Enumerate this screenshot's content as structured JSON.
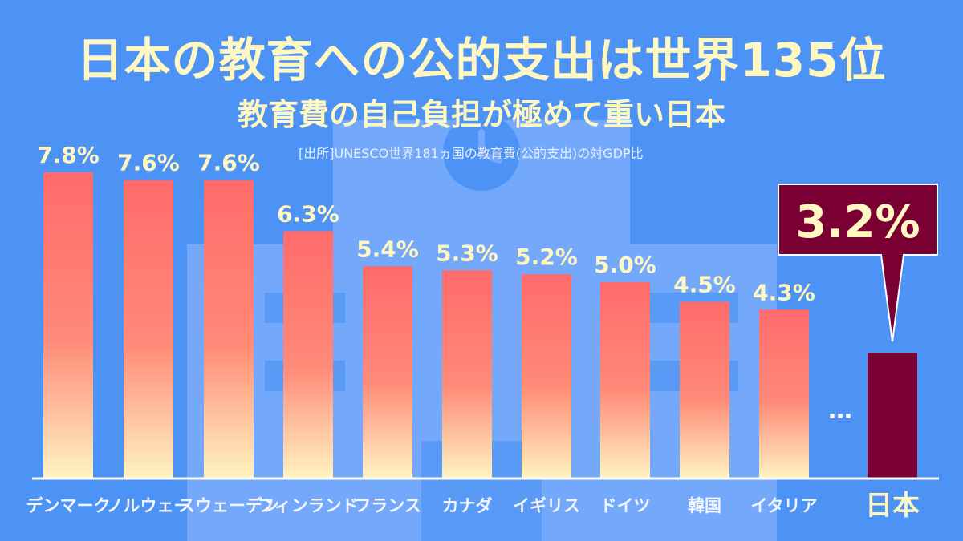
{
  "header": {
    "title": "日本の教育への公的支出は世界135位",
    "subtitle": "教育費の自己負担が極めて重い日本",
    "source": "[出所]UNESCO世界181ヵ国の教育費(公的支出)の対GDP比"
  },
  "ellipsis": "…",
  "colors": {
    "background": "#4d92f5",
    "bar_top": "#ff6b6b",
    "bar_bottom": "#fff4c0",
    "highlight": "#7a0033",
    "text": "#fff7c2"
  },
  "chart_data": {
    "type": "bar",
    "categories": [
      "デンマーク",
      "ノルウェー",
      "スウェーデン",
      "フィンランド",
      "フランス",
      "カナダ",
      "イギリス",
      "ドイツ",
      "韓国",
      "イタリア",
      "日本"
    ],
    "values": [
      7.8,
      7.6,
      7.6,
      6.3,
      5.4,
      5.3,
      5.2,
      5.0,
      4.5,
      4.3,
      3.2
    ],
    "labels": [
      "7.8%",
      "7.6%",
      "7.6%",
      "6.3%",
      "5.4%",
      "5.3%",
      "5.2%",
      "5.0%",
      "4.5%",
      "4.3%",
      "3.2%"
    ],
    "highlight_category": "日本",
    "ylim": [
      0,
      8.5
    ],
    "grid": false
  }
}
